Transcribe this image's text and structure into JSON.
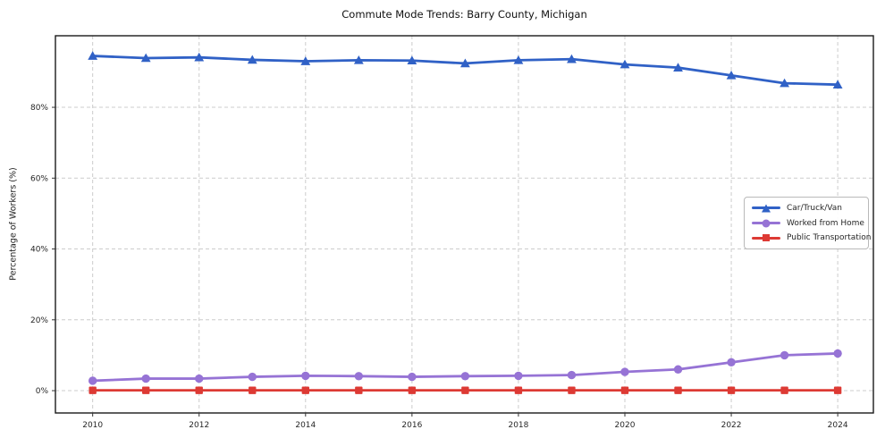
{
  "title": "Commute Mode Trends: Barry County, Michigan",
  "chart_data": {
    "type": "line",
    "title": "Commute Mode Trends: Barry County, Michigan",
    "xlabel": "",
    "ylabel": "Percentage of Workers (%)",
    "x": [
      2010,
      2011,
      2012,
      2013,
      2014,
      2015,
      2016,
      2017,
      2018,
      2019,
      2020,
      2021,
      2022,
      2023,
      2024
    ],
    "series": [
      {
        "name": "Car/Truck/Van",
        "color": "#3061c6",
        "marker": "triangle",
        "values": [
          94.5,
          93.9,
          94.1,
          93.4,
          93.0,
          93.3,
          93.2,
          92.4,
          93.3,
          93.6,
          92.1,
          91.2,
          89.0,
          86.8,
          86.4
        ]
      },
      {
        "name": "Worked from Home",
        "color": "#9673d5",
        "marker": "circle",
        "values": [
          2.8,
          3.4,
          3.4,
          3.9,
          4.2,
          4.1,
          3.9,
          4.1,
          4.2,
          4.4,
          5.3,
          6.0,
          8.0,
          10.0,
          10.5
        ]
      },
      {
        "name": "Public Transportation",
        "color": "#dd3a34",
        "marker": "square",
        "values": [
          0.1,
          0.1,
          0.1,
          0.1,
          0.1,
          0.1,
          0.1,
          0.1,
          0.1,
          0.1,
          0.1,
          0.1,
          0.1,
          0.1,
          0.1
        ]
      }
    ],
    "xticks": [
      2010,
      2012,
      2014,
      2016,
      2018,
      2020,
      2022,
      2024
    ],
    "xtick_labels": [
      "2010",
      "2012",
      "2014",
      "2016",
      "2018",
      "2020",
      "2022",
      "2024"
    ],
    "yticks": [
      0,
      20,
      40,
      60,
      80
    ],
    "ytick_labels": [
      "0%",
      "20%",
      "40%",
      "60%",
      "80%"
    ],
    "xlim": [
      2009.3,
      2024.67
    ],
    "ylim": [
      -6.3,
      100.2
    ],
    "grid": true,
    "legend_position": "center-right"
  }
}
